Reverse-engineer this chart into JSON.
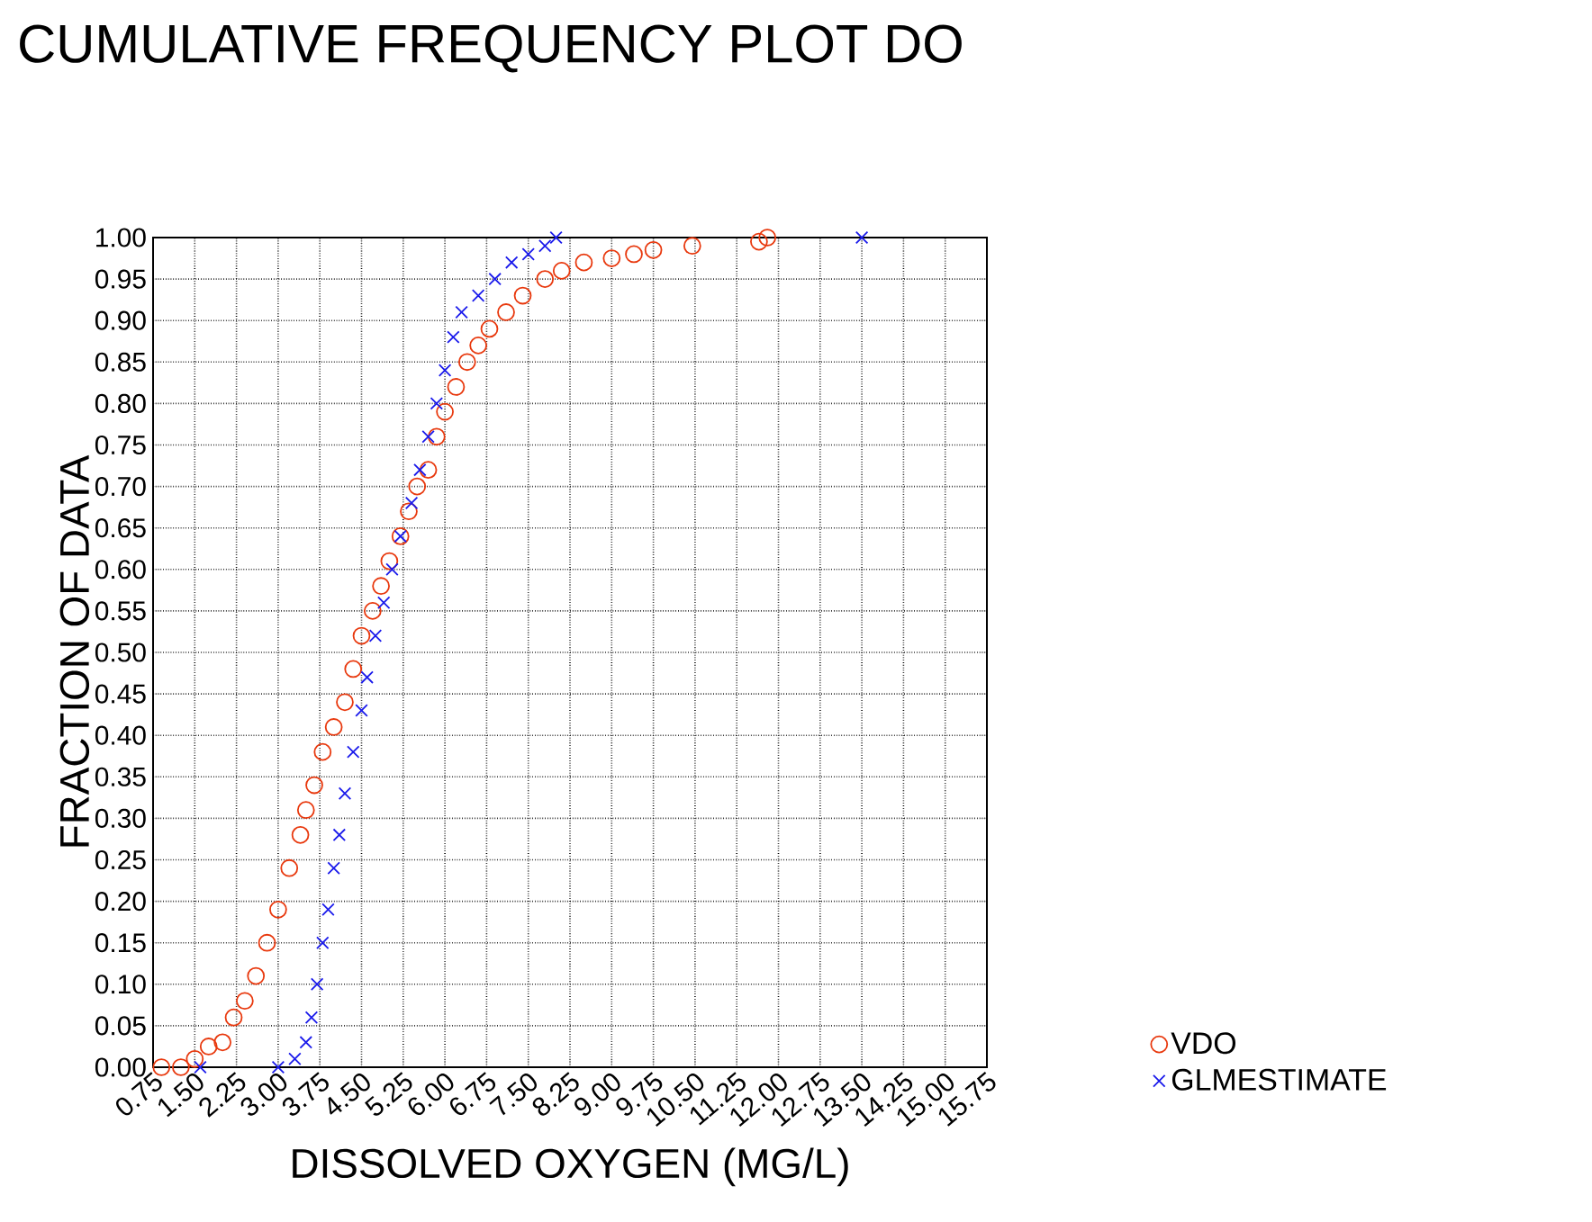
{
  "chart_data": {
    "type": "scatter",
    "title": "CUMULATIVE FREQUENCY PLOT DO",
    "xlabel": "DISSOLVED OXYGEN (MG/L)",
    "ylabel": "FRACTION OF DATA",
    "xlim": [
      0.75,
      15.75
    ],
    "ylim": [
      0,
      1
    ],
    "xticks": [
      {
        "value": 0.75,
        "label": "0.75"
      },
      {
        "value": 1.5,
        "label": "1.50"
      },
      {
        "value": 2.25,
        "label": "2.25"
      },
      {
        "value": 3,
        "label": "3.00"
      },
      {
        "value": 3.75,
        "label": "3.75"
      },
      {
        "value": 4.5,
        "label": "4.50"
      },
      {
        "value": 5.25,
        "label": "5.25"
      },
      {
        "value": 6,
        "label": "6.00"
      },
      {
        "value": 6.75,
        "label": "6.75"
      },
      {
        "value": 7.5,
        "label": "7.50"
      },
      {
        "value": 8.25,
        "label": "8.25"
      },
      {
        "value": 9,
        "label": "9.00"
      },
      {
        "value": 9.75,
        "label": "9.75"
      },
      {
        "value": 10.5,
        "label": "10.50"
      },
      {
        "value": 11.25,
        "label": "11.25"
      },
      {
        "value": 12,
        "label": "12.00"
      },
      {
        "value": 12.75,
        "label": "12.75"
      },
      {
        "value": 13.5,
        "label": "13.50"
      },
      {
        "value": 14.25,
        "label": "14.25"
      },
      {
        "value": 15,
        "label": "15.00"
      },
      {
        "value": 15.75,
        "label": "15.75"
      }
    ],
    "yticks": [
      {
        "value": 0,
        "label": "0.00"
      },
      {
        "value": 0.05,
        "label": "0.05"
      },
      {
        "value": 0.1,
        "label": "0.10"
      },
      {
        "value": 0.15,
        "label": "0.15"
      },
      {
        "value": 0.2,
        "label": "0.20"
      },
      {
        "value": 0.25,
        "label": "0.25"
      },
      {
        "value": 0.3,
        "label": "0.30"
      },
      {
        "value": 0.35,
        "label": "0.35"
      },
      {
        "value": 0.4,
        "label": "0.40"
      },
      {
        "value": 0.45,
        "label": "0.45"
      },
      {
        "value": 0.5,
        "label": "0.50"
      },
      {
        "value": 0.55,
        "label": "0.55"
      },
      {
        "value": 0.6,
        "label": "0.60"
      },
      {
        "value": 0.65,
        "label": "0.65"
      },
      {
        "value": 0.7,
        "label": "0.70"
      },
      {
        "value": 0.75,
        "label": "0.75"
      },
      {
        "value": 0.8,
        "label": "0.80"
      },
      {
        "value": 0.85,
        "label": "0.85"
      },
      {
        "value": 0.9,
        "label": "0.90"
      },
      {
        "value": 0.95,
        "label": "0.95"
      },
      {
        "value": 1,
        "label": "1.00"
      }
    ],
    "grid": true,
    "legend": "bottom right",
    "series": [
      {
        "name": "VDO",
        "color": "#e8380d",
        "marker": "circle",
        "x": [
          0.9,
          1.25,
          1.5,
          1.75,
          2.0,
          2.2,
          2.4,
          2.6,
          2.8,
          3.0,
          3.2,
          3.4,
          3.5,
          3.65,
          3.8,
          4.0,
          4.2,
          4.35,
          4.5,
          4.7,
          4.85,
          5.0,
          5.2,
          5.35,
          5.5,
          5.7,
          5.85,
          6.0,
          6.2,
          6.4,
          6.6,
          6.8,
          7.1,
          7.4,
          7.8,
          8.1,
          8.5,
          9.0,
          9.4,
          9.75,
          10.45,
          11.65,
          11.8
        ],
        "values": [
          0.0,
          0.0,
          0.01,
          0.025,
          0.03,
          0.06,
          0.08,
          0.11,
          0.15,
          0.19,
          0.24,
          0.28,
          0.31,
          0.34,
          0.38,
          0.41,
          0.44,
          0.48,
          0.52,
          0.55,
          0.58,
          0.61,
          0.64,
          0.67,
          0.7,
          0.72,
          0.76,
          0.79,
          0.82,
          0.85,
          0.87,
          0.89,
          0.91,
          0.93,
          0.95,
          0.96,
          0.97,
          0.975,
          0.98,
          0.985,
          0.99,
          0.995,
          1.0
        ]
      },
      {
        "name": "GLMESTIMATE",
        "color": "#1a1aeb",
        "marker": "cross",
        "x": [
          1.6,
          3.0,
          3.3,
          3.5,
          3.6,
          3.7,
          3.8,
          3.9,
          4.0,
          4.1,
          4.2,
          4.35,
          4.5,
          4.6,
          4.75,
          4.9,
          5.05,
          5.2,
          5.4,
          5.55,
          5.7,
          5.85,
          6.0,
          6.15,
          6.3,
          6.6,
          6.9,
          7.2,
          7.5,
          7.8,
          8.0,
          13.5
        ],
        "values": [
          0.0,
          0.0,
          0.01,
          0.03,
          0.06,
          0.1,
          0.15,
          0.19,
          0.24,
          0.28,
          0.33,
          0.38,
          0.43,
          0.47,
          0.52,
          0.56,
          0.6,
          0.64,
          0.68,
          0.72,
          0.76,
          0.8,
          0.84,
          0.88,
          0.91,
          0.93,
          0.95,
          0.97,
          0.98,
          0.99,
          1.0,
          1.0
        ]
      }
    ]
  }
}
